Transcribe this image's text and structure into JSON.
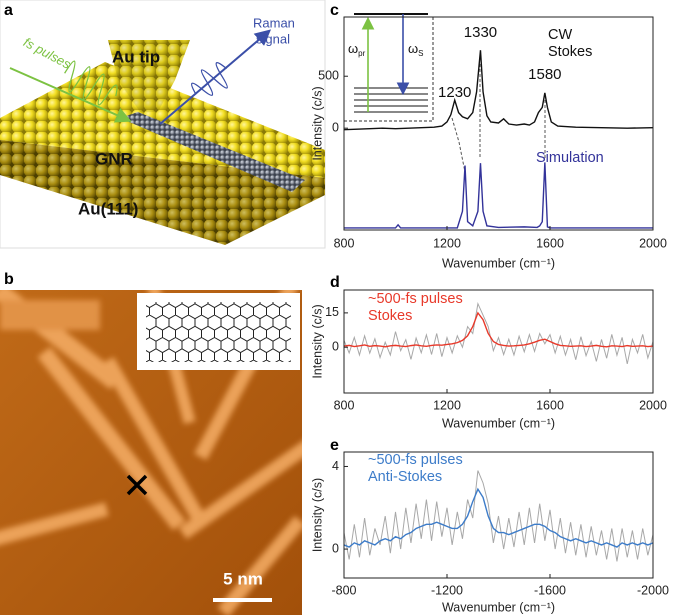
{
  "panel_labels": [
    "a",
    "b",
    "c",
    "d",
    "e"
  ],
  "illustration": {
    "pulse_label": "fs pulses",
    "tip_label": "Au tip",
    "raman_label": [
      "Raman",
      "signal"
    ],
    "ribbon_label": "GNR",
    "substrate_label": "Au(111)"
  },
  "stm_image": {
    "scale_bar": "5 nm"
  },
  "chart_data": [
    {
      "type": "line",
      "xlabel": "Wavenumber (cm⁻¹)",
      "ylabel": "Intensity (c/s)",
      "xlim": [
        800,
        2000
      ],
      "xticks": [
        800,
        1200,
        1600,
        2000
      ],
      "ylim": [
        -980,
        1070
      ],
      "yticks": [
        0,
        500
      ],
      "peak_labels": [
        1230,
        1330,
        1580
      ],
      "annotations": [
        {
          "lines": [
            "CW",
            "Stokes"
          ],
          "color": "#111111"
        },
        {
          "lines": [
            "Simulation"
          ],
          "color": "#33339a"
        }
      ],
      "inset": {
        "labels": [
          {
            "symbol": "ω",
            "subscript": "pr"
          },
          {
            "symbol": "ω",
            "subscript": "S"
          }
        ]
      },
      "series": [
        {
          "color": "#111111",
          "x": [
            800,
            850,
            900,
            950,
            1000,
            1050,
            1100,
            1150,
            1180,
            1200,
            1215,
            1230,
            1245,
            1260,
            1280,
            1300,
            1315,
            1330,
            1340,
            1355,
            1370,
            1400,
            1420,
            1440,
            1470,
            1500,
            1520,
            1540,
            1555,
            1570,
            1580,
            1590,
            1605,
            1630,
            1700,
            1800,
            1900,
            2000
          ],
          "values": [
            -15,
            -10,
            -5,
            0,
            -5,
            0,
            5,
            10,
            20,
            60,
            130,
            270,
            150,
            110,
            90,
            150,
            350,
            750,
            350,
            120,
            60,
            50,
            90,
            40,
            30,
            40,
            30,
            60,
            150,
            200,
            340,
            200,
            60,
            20,
            10,
            5,
            0,
            5
          ]
        },
        {
          "name": "Simulation",
          "color": "#33339a",
          "x": [
            800,
            1000,
            1010,
            1020,
            1240,
            1250,
            1260,
            1270,
            1280,
            1300,
            1320,
            1330,
            1340,
            1355,
            1400,
            1500,
            1550,
            1560,
            1570,
            1580,
            1590,
            1600,
            2000
          ],
          "values": [
            -960,
            -960,
            -930,
            -960,
            -960,
            -880,
            -800,
            -360,
            -900,
            -940,
            -800,
            -337,
            -800,
            -940,
            -955,
            -950,
            -955,
            -940,
            -900,
            -330,
            -950,
            -960,
            -960
          ]
        }
      ]
    },
    {
      "type": "line",
      "xlabel": "Wavenumber (cm⁻¹)",
      "ylabel": "Intensity (c/s)",
      "xlim": [
        800,
        2000
      ],
      "xticks": [
        800,
        1200,
        1600,
        2000
      ],
      "ylim": [
        -20,
        25
      ],
      "yticks": [
        0,
        15
      ],
      "annotations": [
        {
          "lines": [
            "~500-fs pulses",
            "Stokes"
          ],
          "color": "#e8392a"
        }
      ],
      "series": [
        {
          "color": "#a8a8a8",
          "x": [
            800,
            820,
            840,
            860,
            880,
            900,
            920,
            940,
            960,
            980,
            1000,
            1020,
            1040,
            1060,
            1080,
            1100,
            1120,
            1140,
            1160,
            1180,
            1200,
            1220,
            1240,
            1260,
            1280,
            1300,
            1320,
            1340,
            1360,
            1380,
            1400,
            1420,
            1440,
            1460,
            1480,
            1500,
            1520,
            1540,
            1560,
            1580,
            1600,
            1620,
            1640,
            1660,
            1680,
            1700,
            1720,
            1740,
            1760,
            1780,
            1800,
            1820,
            1840,
            1860,
            1880,
            1900,
            1920,
            1940,
            1960,
            1980,
            2000
          ],
          "values": [
            3,
            -2.5,
            4.3,
            -3.4,
            5,
            -2.6,
            3.7,
            -4.5,
            2.2,
            -3.4,
            6.8,
            -1.5,
            3.3,
            -5.3,
            4,
            -2.4,
            5.4,
            -3.2,
            6,
            -4.1,
            4.2,
            -2.5,
            5,
            0,
            9,
            6,
            19,
            14,
            9,
            -1.5,
            4.2,
            -3.2,
            3.5,
            -3.4,
            4.8,
            -2,
            5.5,
            -1.8,
            6,
            1.5,
            5.5,
            -2.5,
            4.8,
            -3.4,
            3.4,
            -5.5,
            4.6,
            -3.7,
            2.5,
            -6.2,
            3.4,
            -4.8,
            5.6,
            -3.5,
            4.3,
            -7.3,
            3.4,
            -2.5,
            5.6,
            -4.7,
            2.5
          ]
        },
        {
          "color": "#e8392a",
          "x": [
            800,
            820,
            840,
            860,
            880,
            900,
            920,
            940,
            960,
            980,
            1000,
            1020,
            1040,
            1060,
            1080,
            1100,
            1120,
            1140,
            1160,
            1180,
            1200,
            1220,
            1240,
            1260,
            1280,
            1300,
            1320,
            1340,
            1360,
            1380,
            1400,
            1420,
            1440,
            1460,
            1480,
            1500,
            1520,
            1540,
            1560,
            1580,
            1600,
            1620,
            1640,
            1660,
            1680,
            1700,
            1720,
            1740,
            1760,
            1780,
            1800,
            1820,
            1840,
            1860,
            1880,
            1900,
            1920,
            1940,
            1960,
            1980,
            2000
          ],
          "values": [
            0.5,
            0.8,
            0.3,
            0.6,
            1,
            0.4,
            0.7,
            0.5,
            0.2,
            0.6,
            0.8,
            0.5,
            0.3,
            0.7,
            1,
            0.6,
            0.4,
            0.8,
            1,
            0.9,
            1.2,
            1.5,
            2,
            3,
            5,
            9,
            15,
            12,
            6,
            2.5,
            1.2,
            0.8,
            0.5,
            0.6,
            0.8,
            1,
            1.5,
            2.2,
            3,
            3.5,
            2.5,
            1.5,
            0.8,
            0.6,
            0.4,
            0.5,
            0.6,
            0.3,
            0.5,
            0.8,
            0.4,
            0.2,
            0.6,
            0.5,
            0.3,
            0.7,
            0.4,
            0.5,
            0.6,
            0.3,
            0.5
          ]
        }
      ]
    },
    {
      "type": "line",
      "xlabel": "Wavenumber (cm⁻¹)",
      "ylabel": "Intensity (c/s)",
      "xlim": [
        -800,
        -2000
      ],
      "xticks": [
        -800,
        -1200,
        -1600,
        -2000
      ],
      "ylim": [
        -1.4,
        4.7
      ],
      "yticks": [
        0,
        4
      ],
      "annotations": [
        {
          "lines": [
            "~500-fs pulses",
            "Anti-Stokes"
          ],
          "color": "#3d7cc9"
        }
      ],
      "series": [
        {
          "color": "#a8a8a8",
          "x": [
            -800,
            -820,
            -840,
            -860,
            -880,
            -900,
            -920,
            -940,
            -960,
            -980,
            -1000,
            -1020,
            -1040,
            -1060,
            -1080,
            -1100,
            -1120,
            -1140,
            -1160,
            -1180,
            -1200,
            -1220,
            -1240,
            -1260,
            -1280,
            -1300,
            -1320,
            -1340,
            -1360,
            -1380,
            -1400,
            -1420,
            -1440,
            -1460,
            -1480,
            -1500,
            -1520,
            -1540,
            -1560,
            -1580,
            -1600,
            -1620,
            -1640,
            -1660,
            -1680,
            -1700,
            -1720,
            -1740,
            -1760,
            -1780,
            -1800,
            -1820,
            -1840,
            -1860,
            -1880,
            -1900,
            -1920,
            -1940,
            -1960,
            -1980,
            -2000
          ],
          "values": [
            0.8,
            -0.5,
            1.2,
            -0.4,
            1.5,
            -0.3,
            1,
            0.2,
            1.6,
            -0.2,
            1.8,
            0,
            2,
            0.3,
            2.2,
            0.5,
            2.4,
            0.4,
            2.3,
            0.6,
            2,
            0.2,
            1.8,
            0.5,
            2.4,
            1.5,
            3.8,
            3.2,
            2.2,
            0.3,
            1.6,
            0,
            1.5,
            0.1,
            1.8,
            0.2,
            2,
            0.3,
            2.2,
            0.4,
            1.9,
            0,
            1.5,
            -0.2,
            1.3,
            -0.3,
            1.2,
            -0.4,
            1.1,
            -0.3,
            0.9,
            -0.5,
            1,
            -0.6,
            1,
            -0.4,
            0.9,
            -0.5,
            1,
            -0.3,
            0.7
          ]
        },
        {
          "color": "#3d7cc9",
          "x": [
            -800,
            -820,
            -840,
            -860,
            -880,
            -900,
            -920,
            -940,
            -960,
            -980,
            -1000,
            -1020,
            -1040,
            -1060,
            -1080,
            -1100,
            -1120,
            -1140,
            -1160,
            -1180,
            -1200,
            -1220,
            -1240,
            -1260,
            -1280,
            -1300,
            -1320,
            -1340,
            -1360,
            -1380,
            -1400,
            -1420,
            -1440,
            -1460,
            -1480,
            -1500,
            -1520,
            -1540,
            -1560,
            -1580,
            -1600,
            -1620,
            -1640,
            -1660,
            -1680,
            -1700,
            -1720,
            -1740,
            -1760,
            -1780,
            -1800,
            -1820,
            -1840,
            -1860,
            -1880,
            -1900,
            -1920,
            -1940,
            -1960,
            -1980,
            -2000
          ],
          "values": [
            0.2,
            0.1,
            0.3,
            0.2,
            0.4,
            0.3,
            0.2,
            0.4,
            0.5,
            0.4,
            0.6,
            0.5,
            0.7,
            0.8,
            1,
            1.1,
            1.2,
            1.2,
            1.3,
            1.2,
            1.1,
            1,
            1,
            1.2,
            1.6,
            2.3,
            2.9,
            2.5,
            1.6,
            1,
            0.8,
            0.8,
            0.7,
            0.8,
            0.9,
            1,
            1.1,
            1.2,
            1.2,
            1.1,
            0.9,
            0.8,
            0.6,
            0.5,
            0.4,
            0.5,
            0.4,
            0.3,
            0.4,
            0.3,
            0.2,
            0.3,
            0.2,
            0.1,
            0.3,
            0.2,
            0.3,
            0.2,
            0.3,
            0.2,
            0.3
          ]
        }
      ]
    }
  ]
}
